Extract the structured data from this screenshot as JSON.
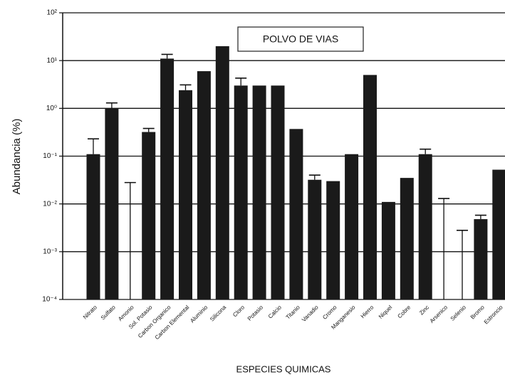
{
  "chart_data": {
    "type": "bar",
    "y_label": "Abundancia (%)",
    "x_label": "ESPECIES QUIMICAS",
    "annotation": "POLVO DE VIAS",
    "categories": [
      "Nitrato",
      "Sulfato",
      "Amonio",
      "Sol. Potasio",
      "Carbon Organico",
      "Carbon Elemental",
      "Aluminio",
      "Silicona",
      "Cloro",
      "Potasio",
      "Calcio",
      "Titanio",
      "Vanadio",
      "Cromo",
      "Manganesio",
      "Hierro",
      "Niquel",
      "Cobre",
      "Zinc",
      "Arsenico",
      "Selenio",
      "Bromo",
      "Estroncio"
    ],
    "values": [
      0.11,
      1.0,
      null,
      0.32,
      11,
      2.4,
      6,
      20,
      3,
      3,
      3,
      0.37,
      0.032,
      0.03,
      0.11,
      5,
      0.011,
      0.035,
      0.11,
      null,
      null,
      0.0048,
      0.052
    ],
    "error_upper": [
      0.23,
      1.3,
      0.028,
      0.38,
      13.5,
      3.1,
      null,
      null,
      4.3,
      null,
      null,
      null,
      0.04,
      null,
      null,
      null,
      null,
      null,
      0.14,
      0.013,
      0.0028,
      0.0058,
      null
    ],
    "color": "#1a1a1a",
    "log_scale": true,
    "grid": true,
    "ylim": [
      0.0001,
      100
    ],
    "yticks": [
      {
        "value": 0.0001,
        "label": "10⁻⁴"
      },
      {
        "value": 0.001,
        "label": "10⁻³"
      },
      {
        "value": 0.01,
        "label": "10⁻²"
      },
      {
        "value": 0.1,
        "label": "10⁻¹"
      },
      {
        "value": 1,
        "label": "10⁰"
      },
      {
        "value": 10,
        "label": "10¹"
      },
      {
        "value": 100,
        "label": "10²"
      }
    ]
  }
}
